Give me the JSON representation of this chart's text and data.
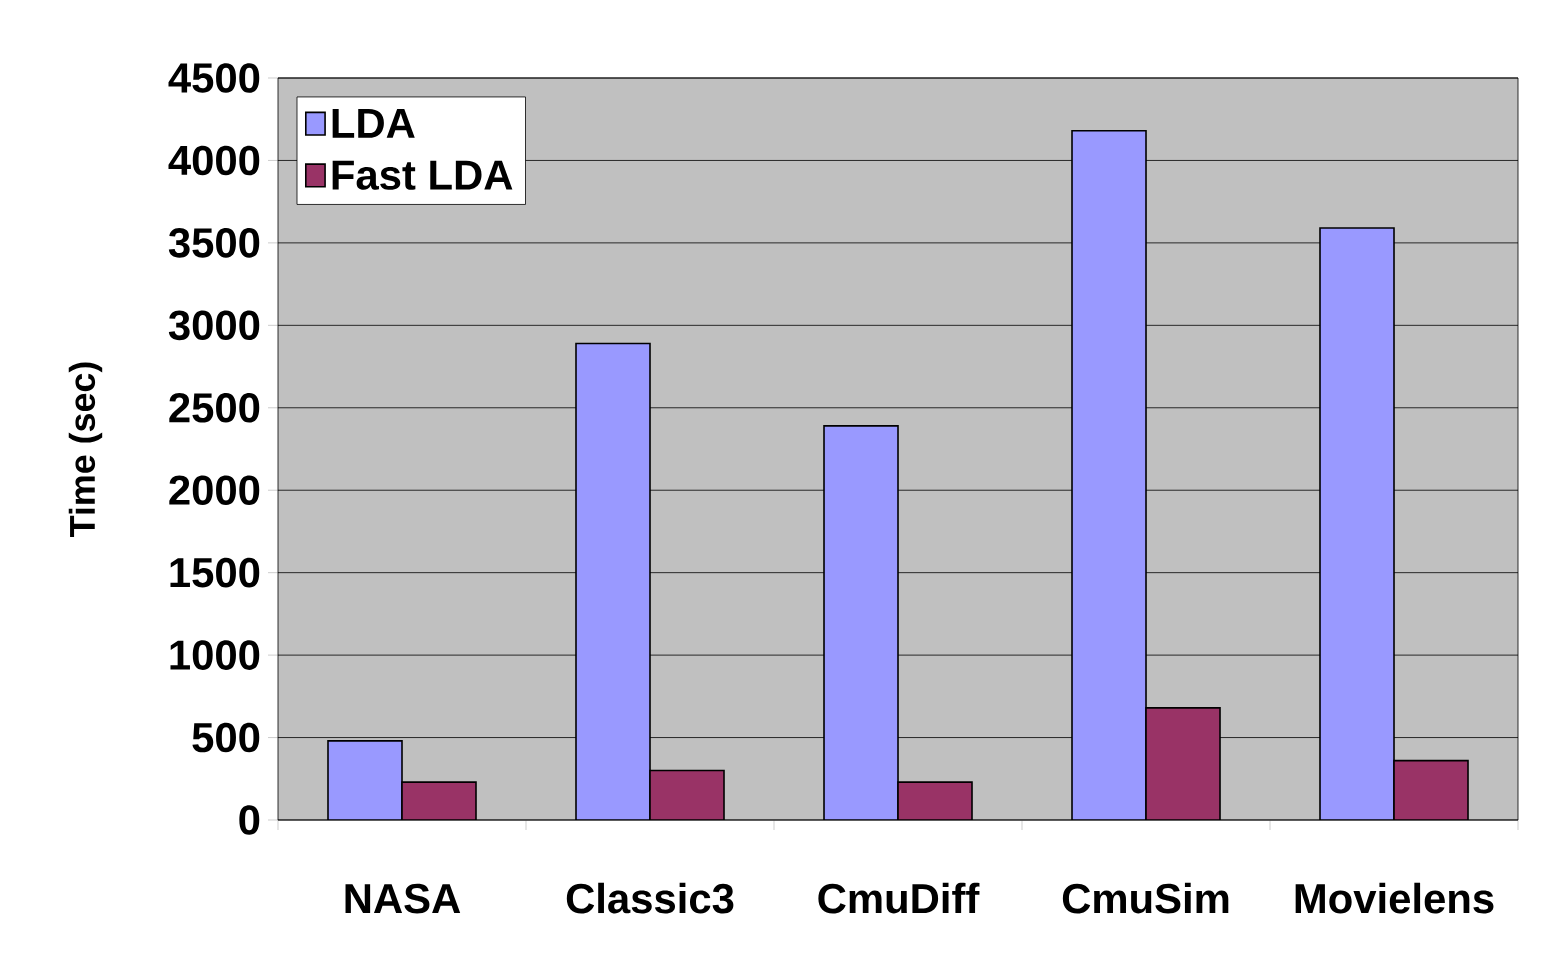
{
  "chart_data": {
    "type": "bar",
    "ylabel": "Time (sec)",
    "categories": [
      "NASA",
      "Classic3",
      "CmuDiff",
      "CmuSim",
      "Movielens"
    ],
    "series": [
      {
        "name": "LDA",
        "color": "#9999ff",
        "values": [
          480,
          2890,
          2390,
          4180,
          3590
        ]
      },
      {
        "name": "Fast LDA",
        "color": "#993366",
        "values": [
          230,
          300,
          230,
          680,
          360
        ]
      }
    ],
    "ylim": [
      0,
      4500
    ],
    "yticks": [
      0,
      500,
      1000,
      1500,
      2000,
      2500,
      3000,
      3500,
      4000,
      4500
    ],
    "grid": "y",
    "legend": "top left"
  }
}
